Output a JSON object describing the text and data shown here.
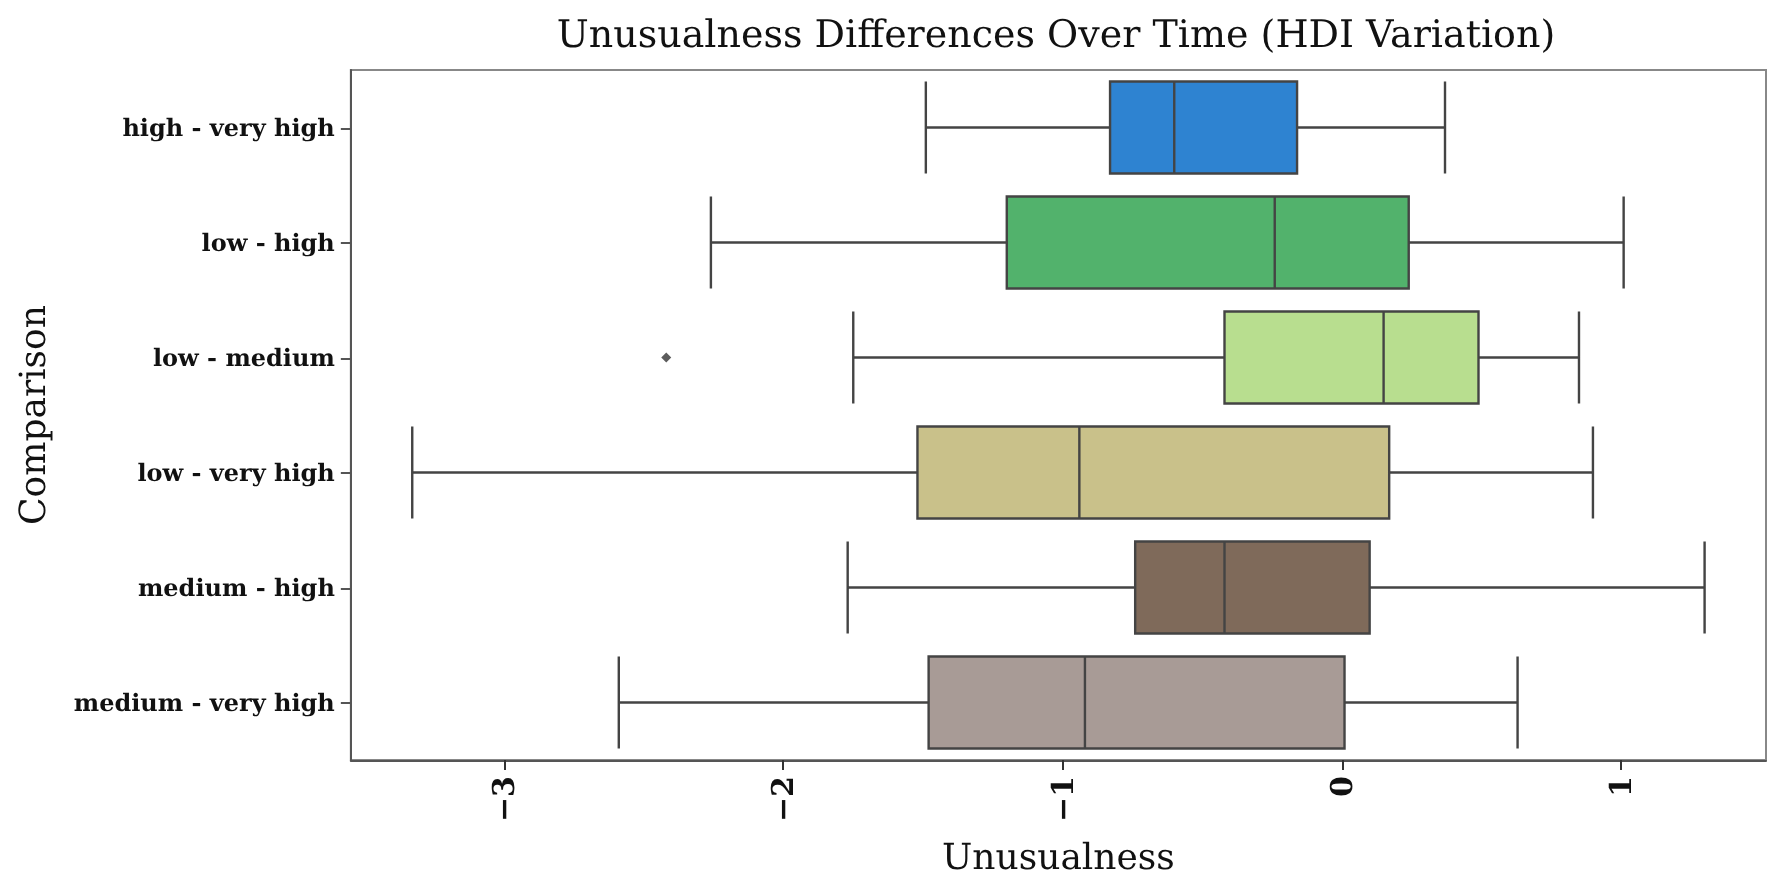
{
  "chart_data": {
    "type": "box",
    "orientation": "horizontal",
    "title": "Unusualness Differences Over Time (HDI Variation)",
    "xlabel": "Unusualness",
    "ylabel": "Comparison",
    "categories": [
      "high - very high",
      "low - high",
      "low - medium",
      "low - very high",
      "medium - high",
      "medium - very high"
    ],
    "colors": [
      "#2e83d1",
      "#52b26c",
      "#b8de8f",
      "#c9c18a",
      "#7f6a5a",
      "#a89b96"
    ],
    "boxes": [
      {
        "low": -1.49,
        "q1": -0.83,
        "median": -0.6,
        "q3": -0.16,
        "high": 0.37
      },
      {
        "low": -2.26,
        "q1": -1.2,
        "median": -0.24,
        "q3": 0.24,
        "high": 1.01
      },
      {
        "low": -1.75,
        "q1": -0.42,
        "median": 0.15,
        "q3": 0.49,
        "high": 0.85,
        "outliers": [
          -2.42
        ]
      },
      {
        "low": -3.33,
        "q1": -1.52,
        "median": -0.94,
        "q3": 0.17,
        "high": 0.9
      },
      {
        "low": -1.77,
        "q1": -0.74,
        "median": -0.42,
        "q3": 0.1,
        "high": 1.3
      },
      {
        "low": -2.59,
        "q1": -1.48,
        "median": -0.92,
        "q3": 0.01,
        "high": 0.63
      }
    ],
    "xlim": [
      -3.55,
      1.52
    ],
    "xticks": [
      {
        "value": -3,
        "label": "−3"
      },
      {
        "value": -2,
        "label": "−2"
      },
      {
        "value": -1,
        "label": "−1"
      },
      0,
      1
    ],
    "grid": false
  }
}
